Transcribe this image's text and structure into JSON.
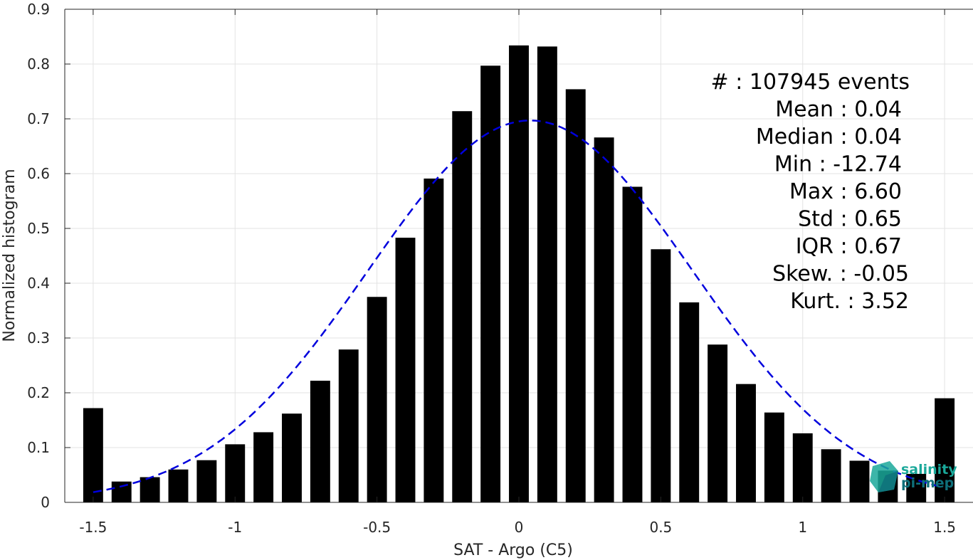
{
  "chart_data": {
    "type": "bar",
    "xlabel": "SAT - Argo (C5)",
    "ylabel": "Normalized histogram",
    "xlim": [
      -1.6,
      1.6
    ],
    "ylim": [
      0,
      0.9
    ],
    "grid": true,
    "x_ticks": [
      -1.5,
      -1,
      -0.5,
      0,
      0.5,
      1,
      1.5
    ],
    "x_tick_labels": [
      "-1.5",
      "-1",
      "-0.5",
      "0",
      "0.5",
      "1",
      "1.5"
    ],
    "y_ticks": [
      0,
      0.1,
      0.2,
      0.3,
      0.4,
      0.5,
      0.6,
      0.7,
      0.8,
      0.9
    ],
    "y_tick_labels": [
      "0",
      "0.1",
      "0.2",
      "0.3",
      "0.4",
      "0.5",
      "0.6",
      "0.7",
      "0.8",
      "0.9"
    ],
    "bar_width": 0.07,
    "bar_color": "#000000",
    "bars": [
      {
        "x": -1.5,
        "y": 0.172
      },
      {
        "x": -1.4,
        "y": 0.038
      },
      {
        "x": -1.3,
        "y": 0.046
      },
      {
        "x": -1.2,
        "y": 0.06
      },
      {
        "x": -1.1,
        "y": 0.077
      },
      {
        "x": -1.0,
        "y": 0.106
      },
      {
        "x": -0.9,
        "y": 0.128
      },
      {
        "x": -0.8,
        "y": 0.162
      },
      {
        "x": -0.7,
        "y": 0.222
      },
      {
        "x": -0.6,
        "y": 0.279
      },
      {
        "x": -0.5,
        "y": 0.375
      },
      {
        "x": -0.4,
        "y": 0.483
      },
      {
        "x": -0.3,
        "y": 0.591
      },
      {
        "x": -0.2,
        "y": 0.714
      },
      {
        "x": -0.1,
        "y": 0.797
      },
      {
        "x": 0.0,
        "y": 0.834
      },
      {
        "x": 0.1,
        "y": 0.832
      },
      {
        "x": 0.2,
        "y": 0.754
      },
      {
        "x": 0.3,
        "y": 0.666
      },
      {
        "x": 0.4,
        "y": 0.576
      },
      {
        "x": 0.5,
        "y": 0.462
      },
      {
        "x": 0.6,
        "y": 0.365
      },
      {
        "x": 0.7,
        "y": 0.288
      },
      {
        "x": 0.8,
        "y": 0.216
      },
      {
        "x": 0.9,
        "y": 0.164
      },
      {
        "x": 1.0,
        "y": 0.126
      },
      {
        "x": 1.1,
        "y": 0.097
      },
      {
        "x": 1.2,
        "y": 0.076
      },
      {
        "x": 1.3,
        "y": 0.058
      },
      {
        "x": 1.4,
        "y": 0.052
      },
      {
        "x": 1.5,
        "y": 0.19
      }
    ],
    "fit_curve": {
      "type": "gaussian",
      "mean": 0.04,
      "std": 0.572,
      "peak": 0.697,
      "x_range": [
        -1.5,
        1.5
      ],
      "color": "#0000dd",
      "style": "dashed"
    },
    "stats": [
      "#  : 107945 events",
      "Mean : 0.04",
      "Median : 0.04",
      "Min : -12.74",
      "Max : 6.60",
      "Std : 0.65",
      "IQR : 0.67",
      "Skew. : -0.05",
      "Kurt. : 3.52"
    ]
  },
  "logo": {
    "line1": "salinity",
    "line2": "pi-mep",
    "colors": [
      "#1aa89a",
      "#0e6f7a",
      "#2ec4a6"
    ]
  }
}
